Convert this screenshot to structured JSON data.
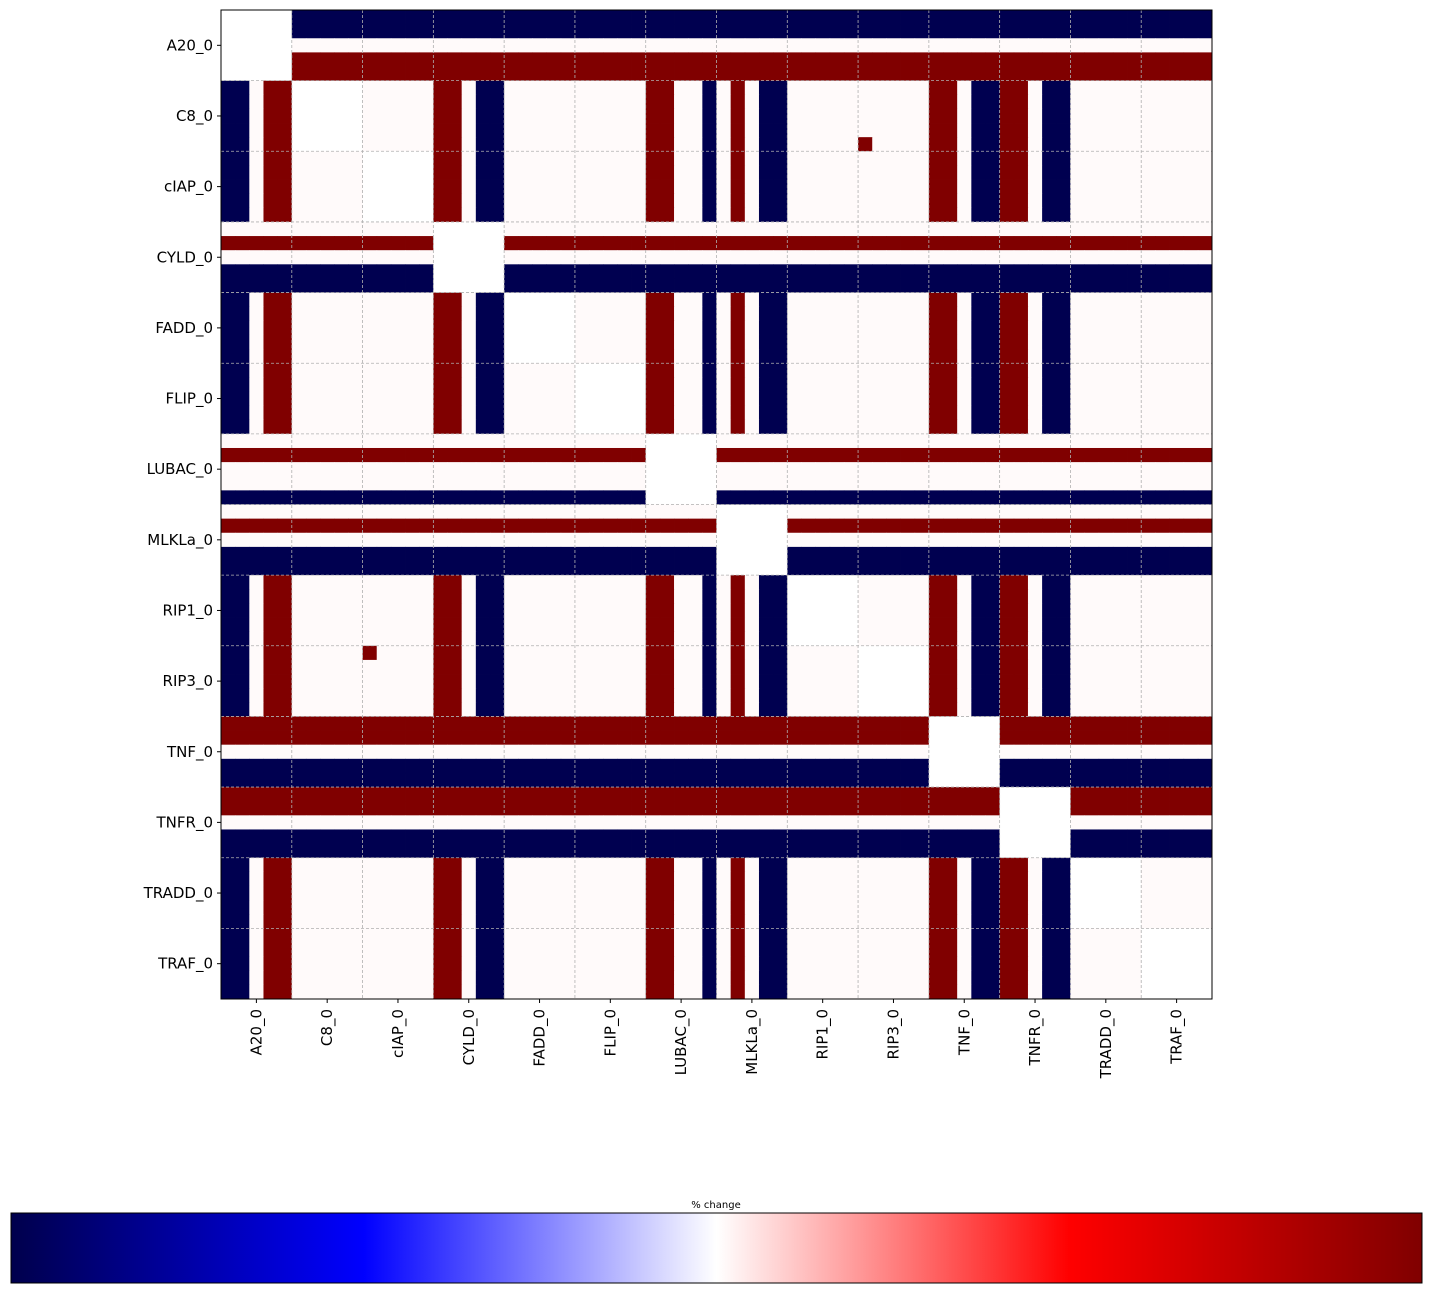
{
  "chart_data": {
    "type": "heatmap",
    "title": "",
    "xlabel": "",
    "ylabel": "",
    "categories": [
      "A20_0",
      "C8_0",
      "cIAP_0",
      "CYLD_0",
      "FADD_0",
      "FLIP_0",
      "LUBAC_0",
      "MLKLa_0",
      "RIP1_0",
      "RIP3_0",
      "TNF_0",
      "TNFR_0",
      "TRADD_0",
      "TRAF_0"
    ],
    "cells_per_category": 5,
    "grid": true,
    "colormap": "seismic",
    "colormap_stops": [
      "#00004c",
      "#0000ff",
      "#ffffff",
      "#ff0000",
      "#800000"
    ],
    "colorbar": {
      "label": "% change",
      "orientation": "horizontal",
      "placement": "bottom"
    },
    "colors": {
      "low": "#000050",
      "neutral": "#fffafa",
      "high": "#800000",
      "diagonal": "#ffffff"
    },
    "values_legend": {
      "-1": "maximum decrease (dark blue)",
      "0": "no change (near white)",
      "1": "maximum increase (dark red)"
    },
    "structure": {
      "full_row_pattern": {
        "A20_0": [
          -1,
          -1,
          0,
          1,
          1
        ],
        "CYLD_0": [
          0,
          1,
          0,
          -1,
          -1
        ],
        "LUBAC_0": [
          0,
          1,
          0,
          0,
          -1
        ],
        "MLKLa_0": [
          0,
          1,
          0,
          -1,
          -1
        ],
        "TNF_0": [
          1,
          1,
          0,
          -1,
          -1
        ],
        "TNFR_0": [
          1,
          1,
          0,
          -1,
          -1
        ]
      },
      "full_col_pattern": {
        "A20_0": [
          -1,
          -1,
          0,
          1,
          1
        ],
        "CYLD_0": [
          1,
          1,
          0,
          -1,
          -1
        ],
        "LUBAC_0": [
          1,
          1,
          0,
          0,
          -1
        ],
        "MLKLa_0": [
          0,
          1,
          0,
          -1,
          -1
        ],
        "TNF_0": [
          1,
          1,
          0,
          -1,
          -1
        ],
        "TNFR_0": [
          1,
          1,
          0,
          -1,
          -1
        ]
      },
      "isolated_cells": [
        {
          "row": "C8_0",
          "row_sub": 4,
          "col": "RIP3_0",
          "col_sub": 0,
          "value": 1
        },
        {
          "row": "RIP3_0",
          "row_sub": 0,
          "col": "cIAP_0",
          "col_sub": 0,
          "value": 1
        }
      ]
    }
  }
}
